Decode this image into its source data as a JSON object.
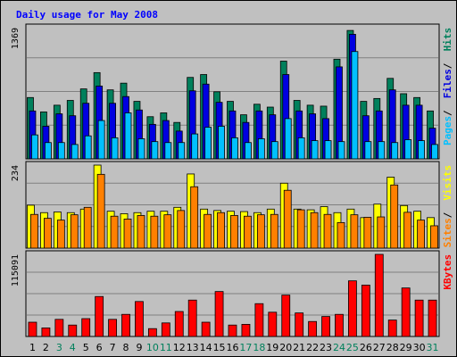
{
  "title": "Daily usage for May 2008",
  "colors": {
    "background": "#c0c0c0",
    "plot": "#c0c0c0",
    "hits": "#00805c",
    "files": "#0000e0",
    "pages": "#00c0ff",
    "visits": "#ffff00",
    "sites": "#ff8000",
    "kbytes": "#ff0000",
    "title": "#0000ff",
    "weekend_label": "#00805c",
    "weekday_label": "#000000"
  },
  "chart_data": [
    {
      "type": "bar",
      "panel": "hits-files-pages",
      "ymax_label": "1369",
      "ylim": [
        0,
        1369
      ],
      "categories": [
        "1",
        "2",
        "3",
        "4",
        "5",
        "6",
        "7",
        "8",
        "9",
        "10",
        "11",
        "12",
        "13",
        "14",
        "15",
        "16",
        "17",
        "18",
        "19",
        "20",
        "21",
        "22",
        "23",
        "24",
        "25",
        "26",
        "27",
        "28",
        "29",
        "30",
        "31"
      ],
      "series": [
        {
          "name": "Hits",
          "color": "#00805c",
          "values": [
            640,
            490,
            560,
            610,
            730,
            900,
            720,
            790,
            600,
            440,
            480,
            380,
            850,
            880,
            700,
            600,
            460,
            570,
            540,
            1020,
            610,
            560,
            550,
            1040,
            1340,
            600,
            630,
            840,
            680,
            640,
            500
          ]
        },
        {
          "name": "Files",
          "color": "#0000e0",
          "values": [
            500,
            340,
            470,
            450,
            580,
            760,
            580,
            650,
            510,
            360,
            400,
            290,
            710,
            780,
            590,
            500,
            380,
            500,
            460,
            880,
            500,
            470,
            420,
            960,
            1300,
            450,
            500,
            720,
            560,
            560,
            320
          ]
        },
        {
          "name": "Pages",
          "color": "#00c0ff",
          "values": [
            250,
            170,
            170,
            150,
            240,
            400,
            220,
            480,
            210,
            180,
            170,
            170,
            260,
            330,
            340,
            220,
            170,
            210,
            180,
            420,
            220,
            190,
            190,
            180,
            1120,
            180,
            180,
            170,
            200,
            190,
            150
          ]
        }
      ],
      "legend": [
        "Pages",
        "Files",
        "Hits"
      ]
    },
    {
      "type": "bar",
      "panel": "visits-sites",
      "ymax_label": "234",
      "ylim": [
        0,
        234
      ],
      "categories": [
        "1",
        "2",
        "3",
        "4",
        "5",
        "6",
        "7",
        "8",
        "9",
        "10",
        "11",
        "12",
        "13",
        "14",
        "15",
        "16",
        "17",
        "18",
        "19",
        "20",
        "21",
        "22",
        "23",
        "24",
        "25",
        "26",
        "27",
        "28",
        "29",
        "30",
        "31"
      ],
      "series": [
        {
          "name": "Visits",
          "color": "#ffff00",
          "values": [
            121,
            100,
            102,
            100,
            110,
            234,
            104,
            97,
            100,
            104,
            104,
            115,
            209,
            110,
            106,
            104,
            103,
            100,
            110,
            183,
            110,
            108,
            117,
            100,
            110,
            86,
            124,
            200,
            120,
            104,
            86
          ]
        },
        {
          "name": "Sites",
          "color": "#ff8000",
          "values": [
            95,
            84,
            79,
            94,
            115,
            208,
            90,
            82,
            92,
            90,
            94,
            106,
            173,
            95,
            100,
            92,
            90,
            94,
            95,
            163,
            108,
            100,
            95,
            72,
            94,
            87,
            88,
            178,
            101,
            79,
            63
          ]
        }
      ],
      "legend": [
        "Sites",
        "Visits"
      ]
    },
    {
      "type": "bar",
      "panel": "kbytes",
      "ymax_label": "115091",
      "ylim": [
        0,
        115091
      ],
      "categories": [
        "1",
        "2",
        "3",
        "4",
        "5",
        "6",
        "7",
        "8",
        "9",
        "10",
        "11",
        "12",
        "13",
        "14",
        "15",
        "16",
        "17",
        "18",
        "19",
        "20",
        "21",
        "22",
        "23",
        "24",
        "25",
        "26",
        "27",
        "28",
        "29",
        "30",
        "31"
      ],
      "series": [
        {
          "name": "KBytes",
          "color": "#ff0000",
          "values": [
            20000,
            12000,
            24000,
            16000,
            25000,
            56000,
            24000,
            31000,
            49000,
            11000,
            19000,
            35000,
            51000,
            20000,
            63000,
            16000,
            17000,
            46000,
            34000,
            58000,
            33000,
            21000,
            28000,
            31000,
            78000,
            72000,
            115091,
            23000,
            68000,
            51000,
            51000
          ]
        }
      ],
      "legend": [
        "KBytes"
      ]
    }
  ],
  "weekend_days": [
    "3",
    "4",
    "10",
    "11",
    "17",
    "18",
    "24",
    "25",
    "31"
  ]
}
